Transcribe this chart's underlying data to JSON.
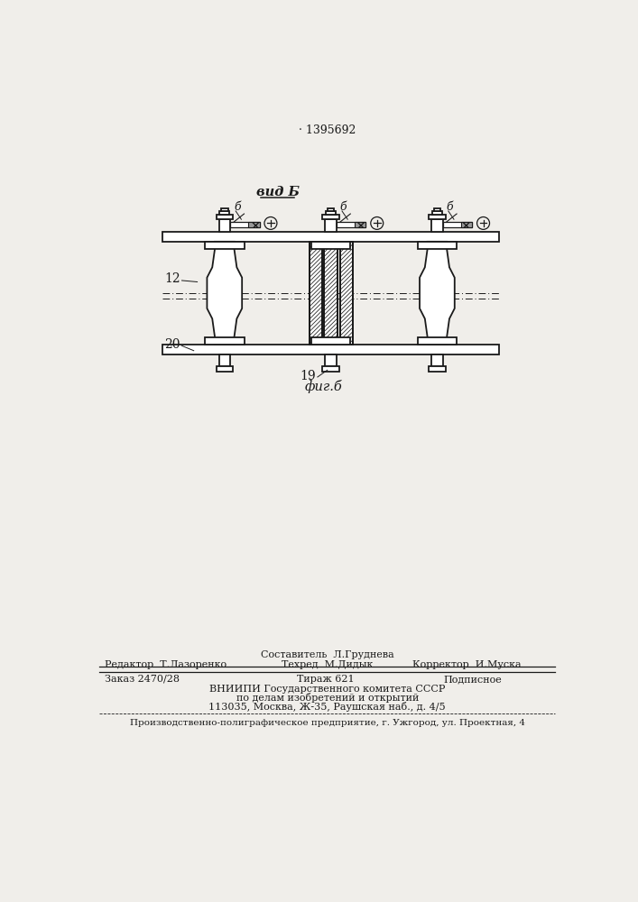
{
  "patent_number": "1395692",
  "bg_color": "#f0eeea",
  "line_color": "#1a1a1a",
  "vid_b": "вид Б",
  "fig_b": "фиг.б",
  "label_b": "б",
  "label_12": "12",
  "label_19": "19",
  "label_20": "20",
  "editor_line1": "Составитель  Л.Груднева",
  "editor_label": "Редактор  Т.Лазоренко",
  "tekhred_label": "Техред  М.Дидык",
  "korrektor_label": "Корректор  И.Муска",
  "zakaz": "Заказ 2470/28",
  "tiraz": "Тираж 621",
  "podpisnoe": "Подписное",
  "vniipи": "ВНИИПИ Государственного комитета СССР",
  "po_delam": "по делам изобретений и открытий",
  "address": "113035, Москва, Ж-35, Раушская наб., д. 4/5",
  "poligraf": "Производственно-полиграфическое предприятие, г. Ужгород, ул. Проектная, 4"
}
